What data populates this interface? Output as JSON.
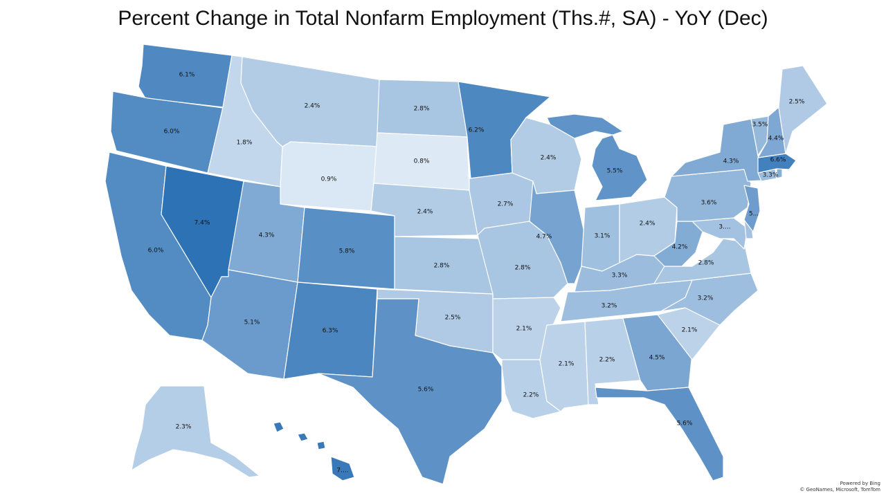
{
  "title": "Percent Change in Total Nonfarm Employment (Ths.#, SA) - YoY (Dec)",
  "legend_scale": {
    "low_color": "#dde9f5",
    "high_color": "#2e72b6",
    "min": 0.8,
    "max": 7.4
  },
  "attribution": {
    "line1": "Powered by Bing",
    "line2": "© GeoNames, Microsoft, TomTom"
  },
  "states": [
    {
      "state": "WA",
      "label": "6.1%",
      "value": 6.1
    },
    {
      "state": "OR",
      "label": "6.0%",
      "value": 6.0
    },
    {
      "state": "CA",
      "label": "6.0%",
      "value": 6.0
    },
    {
      "state": "NV",
      "label": "7.4%",
      "value": 7.4
    },
    {
      "state": "ID",
      "label": "1.8%",
      "value": 1.8
    },
    {
      "state": "MT",
      "label": "2.4%",
      "value": 2.4
    },
    {
      "state": "WY",
      "label": "0.9%",
      "value": 0.9
    },
    {
      "state": "UT",
      "label": "4.3%",
      "value": 4.3
    },
    {
      "state": "AZ",
      "label": "5.1%",
      "value": 5.1
    },
    {
      "state": "CO",
      "label": "5.8%",
      "value": 5.8
    },
    {
      "state": "NM",
      "label": "6.3%",
      "value": 6.3
    },
    {
      "state": "ND",
      "label": "2.8%",
      "value": 2.8
    },
    {
      "state": "SD",
      "label": "0.8%",
      "value": 0.8
    },
    {
      "state": "NE",
      "label": "2.4%",
      "value": 2.4
    },
    {
      "state": "KS",
      "label": "2.8%",
      "value": 2.8
    },
    {
      "state": "OK",
      "label": "2.5%",
      "value": 2.5
    },
    {
      "state": "TX",
      "label": "5.6%",
      "value": 5.6
    },
    {
      "state": "MN",
      "label": "6.2%",
      "value": 6.2
    },
    {
      "state": "IA",
      "label": "2.7%",
      "value": 2.7
    },
    {
      "state": "MO",
      "label": "2.8%",
      "value": 2.8
    },
    {
      "state": "AR",
      "label": "2.1%",
      "value": 2.1
    },
    {
      "state": "LA",
      "label": "2.2%",
      "value": 2.2
    },
    {
      "state": "WI",
      "label": "2.4%",
      "value": 2.4
    },
    {
      "state": "IL",
      "label": "4.7%",
      "value": 4.7
    },
    {
      "state": "MI",
      "label": "5.5%",
      "value": 5.5
    },
    {
      "state": "IN",
      "label": "3.1%",
      "value": 3.1
    },
    {
      "state": "OH",
      "label": "2.4%",
      "value": 2.4
    },
    {
      "state": "KY",
      "label": "3.3%",
      "value": 3.3
    },
    {
      "state": "TN",
      "label": "3.2%",
      "value": 3.2
    },
    {
      "state": "MS",
      "label": "2.1%",
      "value": 2.1
    },
    {
      "state": "AL",
      "label": "2.2%",
      "value": 2.2
    },
    {
      "state": "GA",
      "label": "4.5%",
      "value": 4.5
    },
    {
      "state": "FL",
      "label": "5.6%",
      "value": 5.6
    },
    {
      "state": "SC",
      "label": "2.1%",
      "value": 2.1
    },
    {
      "state": "NC",
      "label": "3.2%",
      "value": 3.2
    },
    {
      "state": "VA",
      "label": "2.8%",
      "value": 2.8
    },
    {
      "state": "WV",
      "label": "4.2%",
      "value": 4.2
    },
    {
      "state": "MD",
      "label": "3....",
      "value": null
    },
    {
      "state": "DE",
      "label": "",
      "value": null
    },
    {
      "state": "PA",
      "label": "3.6%",
      "value": 3.6
    },
    {
      "state": "NJ",
      "label": "5...",
      "value": null
    },
    {
      "state": "NY",
      "label": "4.3%",
      "value": 4.3
    },
    {
      "state": "CT",
      "label": "3.3%",
      "value": 3.3
    },
    {
      "state": "RI",
      "label": "",
      "value": null
    },
    {
      "state": "MA",
      "label": "6.6%",
      "value": 6.6
    },
    {
      "state": "VT",
      "label": "3.5%",
      "value": 3.5
    },
    {
      "state": "NH",
      "label": "4.4%",
      "value": 4.4
    },
    {
      "state": "ME",
      "label": "2.5%",
      "value": 2.5
    },
    {
      "state": "AK",
      "label": "2.3%",
      "value": 2.3
    },
    {
      "state": "HI",
      "label": "7....",
      "value": null
    }
  ]
}
